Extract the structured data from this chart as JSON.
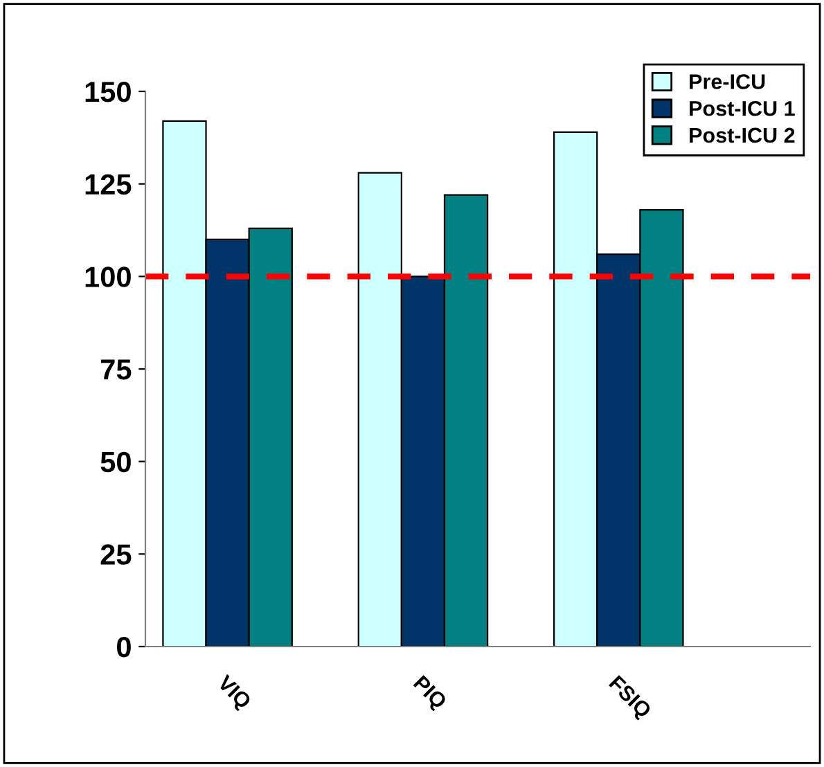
{
  "chart_data": {
    "type": "bar",
    "categories": [
      "VIQ",
      "PIQ",
      "FSIQ"
    ],
    "series": [
      {
        "name": "Pre-ICU",
        "color": "#ccffff",
        "values": [
          142,
          128,
          139
        ]
      },
      {
        "name": "Post-ICU 1",
        "color": "#003366",
        "values": [
          110,
          100,
          106
        ]
      },
      {
        "name": "Post-ICU 2",
        "color": "#008080",
        "values": [
          113,
          122,
          118
        ]
      }
    ],
    "ylim": [
      0,
      150
    ],
    "yticks": [
      0,
      25,
      50,
      75,
      100,
      125,
      150
    ],
    "ref_lines": [
      {
        "axis": "y",
        "value": 100,
        "color": "#ff0000",
        "line_style": "dashed"
      }
    ],
    "legend": "top right",
    "grid": false
  }
}
